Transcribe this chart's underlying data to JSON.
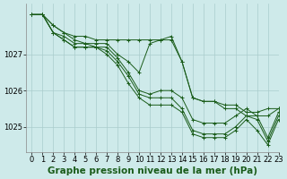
{
  "background_color": "#ceeaea",
  "grid_color": "#aacccc",
  "line_color": "#1a5c1a",
  "xlabel": "Graphe pression niveau de la mer (hPa)",
  "xlabel_fontsize": 7.5,
  "tick_fontsize": 6.0,
  "xlim": [
    -0.5,
    23
  ],
  "ylim": [
    1024.3,
    1028.4
  ],
  "yticks": [
    1025,
    1026,
    1027
  ],
  "xticks": [
    0,
    1,
    2,
    3,
    4,
    5,
    6,
    7,
    8,
    9,
    10,
    11,
    12,
    13,
    14,
    15,
    16,
    17,
    18,
    19,
    20,
    21,
    22,
    23
  ],
  "series": [
    [
      1028.1,
      1028.1,
      1027.8,
      1027.6,
      1027.5,
      1027.5,
      1027.4,
      1027.4,
      1027.4,
      1027.4,
      1027.4,
      1027.4,
      1027.4,
      1027.4,
      1026.8,
      1025.8,
      1025.7,
      1025.7,
      1025.6,
      1025.6,
      1025.4,
      1025.4,
      1025.5,
      1025.5
    ],
    [
      1028.1,
      1028.1,
      1027.8,
      1027.6,
      1027.4,
      1027.3,
      1027.3,
      1027.3,
      1027.0,
      1026.8,
      1026.5,
      1027.3,
      1027.4,
      1027.5,
      1026.8,
      1025.8,
      1025.7,
      1025.7,
      1025.5,
      1025.5,
      1025.3,
      1025.3,
      1025.3,
      1025.5
    ],
    [
      1028.1,
      1028.1,
      1027.6,
      1027.5,
      1027.3,
      1027.3,
      1027.2,
      1027.2,
      1026.9,
      1026.5,
      1026.0,
      1025.9,
      1026.0,
      1026.0,
      1025.8,
      1025.2,
      1025.1,
      1025.1,
      1025.1,
      1025.3,
      1025.5,
      1025.3,
      1024.7,
      1025.4
    ],
    [
      1028.1,
      1028.1,
      1027.6,
      1027.4,
      1027.2,
      1027.2,
      1027.2,
      1027.1,
      1026.8,
      1026.4,
      1025.9,
      1025.8,
      1025.8,
      1025.8,
      1025.5,
      1024.9,
      1024.8,
      1024.8,
      1024.8,
      1025.0,
      1025.3,
      1025.2,
      1024.6,
      1025.3
    ],
    [
      1028.1,
      1028.1,
      1027.6,
      1027.4,
      1027.2,
      1027.2,
      1027.2,
      1027.0,
      1026.7,
      1026.2,
      1025.8,
      1025.6,
      1025.6,
      1025.6,
      1025.4,
      1024.8,
      1024.7,
      1024.7,
      1024.7,
      1024.9,
      1025.2,
      1024.9,
      1024.5,
      1025.2
    ]
  ]
}
